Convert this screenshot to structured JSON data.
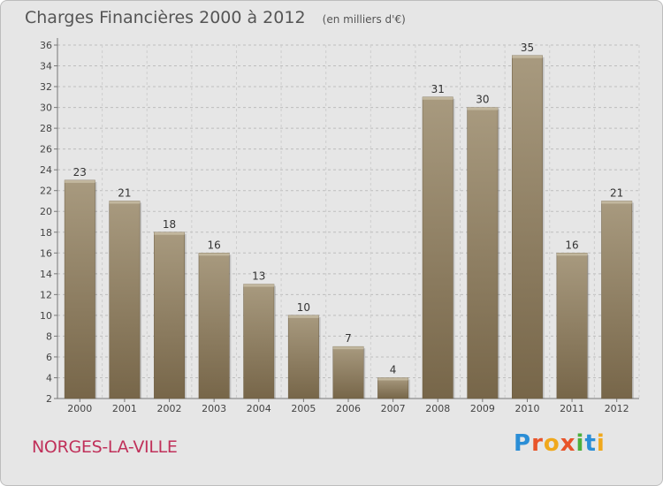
{
  "header": {
    "title": "Charges Financières 2000 à 2012",
    "subtitle": "(en milliers d'€)"
  },
  "footer": {
    "commune": "NORGES-LA-VILLE",
    "logo_text": "Proxiti"
  },
  "colors": {
    "background": "#e6e6e6",
    "bar_light": "#a89a7f",
    "bar_dark": "#7a6a4e",
    "text": "#555555",
    "commune": "#c0305a"
  },
  "chart_data": {
    "type": "bar",
    "title": "Charges Financières 2000 à 2012",
    "subtitle": "(en milliers d'€)",
    "xlabel": "",
    "ylabel": "",
    "categories": [
      "2000",
      "2001",
      "2002",
      "2003",
      "2004",
      "2005",
      "2006",
      "2007",
      "2008",
      "2009",
      "2010",
      "2011",
      "2012"
    ],
    "values": [
      23,
      21,
      18,
      16,
      13,
      10,
      7,
      4,
      31,
      30,
      35,
      16,
      21
    ],
    "ylim": [
      2,
      36
    ],
    "yticks": [
      2,
      4,
      6,
      8,
      10,
      12,
      14,
      16,
      18,
      20,
      22,
      24,
      26,
      28,
      30,
      32,
      34,
      36
    ],
    "grid": true,
    "data_labels": true
  }
}
